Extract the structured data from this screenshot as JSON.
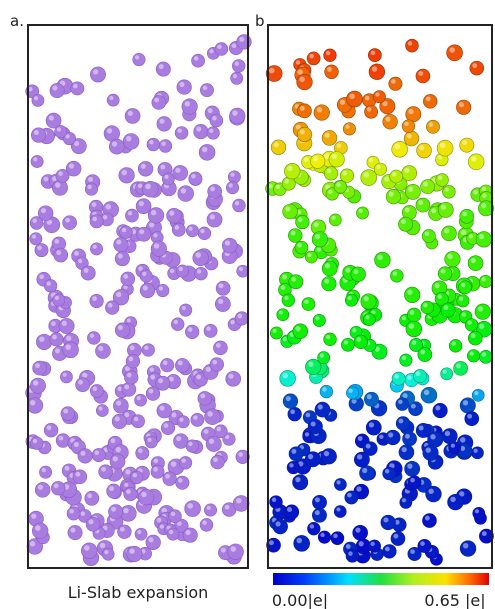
{
  "panels": [
    {
      "label": "a."
    },
    {
      "label": "b"
    }
  ],
  "caption": "Li-Slab expansion",
  "colorbar": {
    "min_label": "0.00|e|",
    "max_label": "0.65 |e|"
  }
}
